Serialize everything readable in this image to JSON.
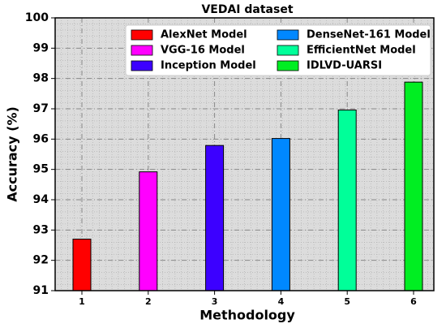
{
  "chart_data": {
    "type": "bar",
    "title": "VEDAI dataset",
    "x_label": "Methodology",
    "y_label": "Accuracy (%)",
    "categories": [
      "1",
      "2",
      "3",
      "4",
      "5",
      "6"
    ],
    "series": [
      {
        "name": "AlexNet Model",
        "color": "#ff0000",
        "values": [
          92.7,
          null,
          null,
          null,
          null,
          null
        ]
      },
      {
        "name": "VGG-16 Model",
        "color": "#ff00ff",
        "values": [
          null,
          94.92,
          null,
          null,
          null,
          null
        ]
      },
      {
        "name": "Inception Model",
        "color": "#3c00ff",
        "values": [
          null,
          null,
          95.79,
          null,
          null,
          null
        ]
      },
      {
        "name": "DenseNet-161 Model",
        "color": "#0088ff",
        "values": [
          null,
          null,
          null,
          96.02,
          null,
          null
        ]
      },
      {
        "name": "EfficientNet Model",
        "color": "#00ff99",
        "values": [
          null,
          null,
          null,
          null,
          96.96,
          null
        ]
      },
      {
        "name": "IDLVD-UARSI",
        "color": "#00ee22",
        "values": [
          null,
          null,
          null,
          null,
          null,
          97.88
        ]
      }
    ],
    "ylim": [
      91,
      100
    ],
    "yticks": [
      91,
      92,
      93,
      94,
      95,
      96,
      97,
      98,
      99,
      100
    ],
    "grid": true
  }
}
